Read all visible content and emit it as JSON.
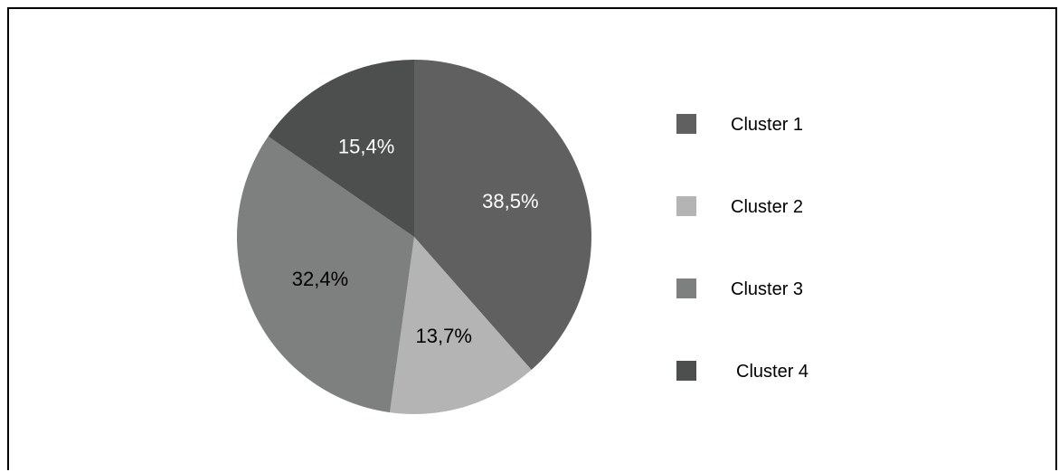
{
  "chart_data": {
    "type": "pie",
    "title": "",
    "categories": [
      "Cluster 1",
      "Cluster 2",
      "Cluster 3",
      "Cluster 4"
    ],
    "values": [
      38.5,
      13.7,
      32.4,
      15.4
    ],
    "labels": [
      "38,5%",
      "13,7%",
      "32,4%",
      "15,4%"
    ],
    "colors": [
      "#606060",
      "#b4b4b4",
      "#7e807f",
      "#4d4f4e"
    ],
    "label_colors": [
      "#ffffff",
      "#000000",
      "#000000",
      "#ffffff"
    ],
    "start_angle": "12 o'clock",
    "direction": "clockwise",
    "legend_position": "right"
  }
}
